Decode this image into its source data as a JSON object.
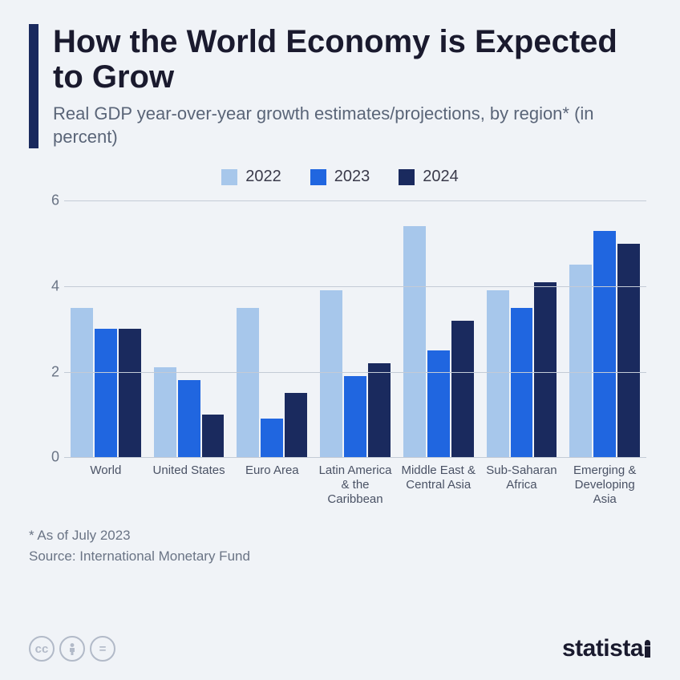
{
  "title": "How the World Economy is Expected to Grow",
  "subtitle": "Real GDP year-over-year growth estimates/projections, by region* (in percent)",
  "chart": {
    "type": "bar",
    "series": [
      {
        "label": "2022",
        "color": "#a7c7eb"
      },
      {
        "label": "2023",
        "color": "#2066e0"
      },
      {
        "label": "2024",
        "color": "#1a2a5e"
      }
    ],
    "categories": [
      "World",
      "United States",
      "Euro Area",
      "Latin America & the Caribbean",
      "Middle East & Central Asia",
      "Sub-Saharan Africa",
      "Emerging & Developing Asia"
    ],
    "values": [
      [
        3.5,
        3.0,
        3.0
      ],
      [
        2.1,
        1.8,
        1.0
      ],
      [
        3.5,
        0.9,
        1.5
      ],
      [
        3.9,
        1.9,
        2.2
      ],
      [
        5.4,
        2.5,
        3.2
      ],
      [
        3.9,
        3.5,
        4.1
      ],
      [
        4.5,
        5.3,
        5.0
      ]
    ],
    "ylim": [
      0,
      6
    ],
    "yticks": [
      0,
      2,
      4,
      6
    ],
    "gridline_color": "#c4cbd6",
    "background_color": "#f0f3f7",
    "accent_color": "#1a2a5e",
    "title_fontsize": 40,
    "subtitle_fontsize": 22,
    "tick_fontsize": 18,
    "xlabel_fontsize": 15
  },
  "footnote": "* As of July 2023",
  "source": "Source: International Monetary Fund",
  "brand": "statista",
  "license_icons": [
    "cc",
    "by",
    "nd"
  ]
}
